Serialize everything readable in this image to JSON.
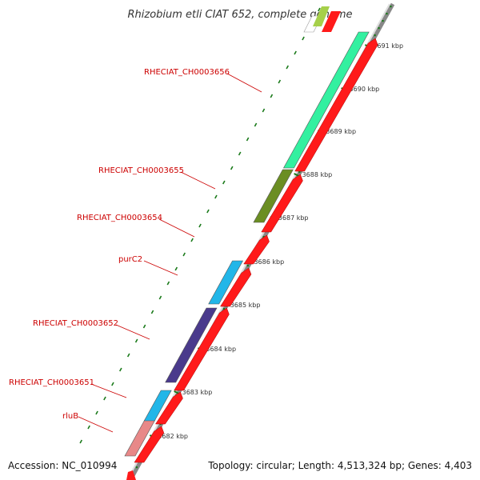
{
  "title": "Rhizobium etli CIAT 652, complete genome",
  "footer": {
    "accession": "Accession: NC_010994",
    "summary": "Topology: circular; Length: 4,513,324 bp; Genes: 4,403"
  },
  "scale": {
    "ticks": [
      "3691 kbp",
      "3690 kbp",
      "3689 kbp",
      "3688 kbp",
      "3687 kbp",
      "3686 kbp",
      "3685 kbp",
      "3684 kbp",
      "3683 kbp",
      "3682 kbp"
    ],
    "color": "#1a7a1a"
  },
  "genes": [
    {
      "name": "rluB",
      "color": "#e88888"
    },
    {
      "name": "RHECIAT_CH0003651",
      "color": "#22b6e8"
    },
    {
      "name": "RHECIAT_CH0003652",
      "color": "#4a3a8c"
    },
    {
      "name": "purC2",
      "color": "#22b6e8"
    },
    {
      "name": "RHECIAT_CH0003654",
      "color": "#ffffff"
    },
    {
      "name": "RHECIAT_CH0003655",
      "color": "#6b8e23"
    },
    {
      "name": "RHECIAT_CH0003656",
      "color": "#33f0a0"
    }
  ],
  "cds_color": "#ff1a1a"
}
